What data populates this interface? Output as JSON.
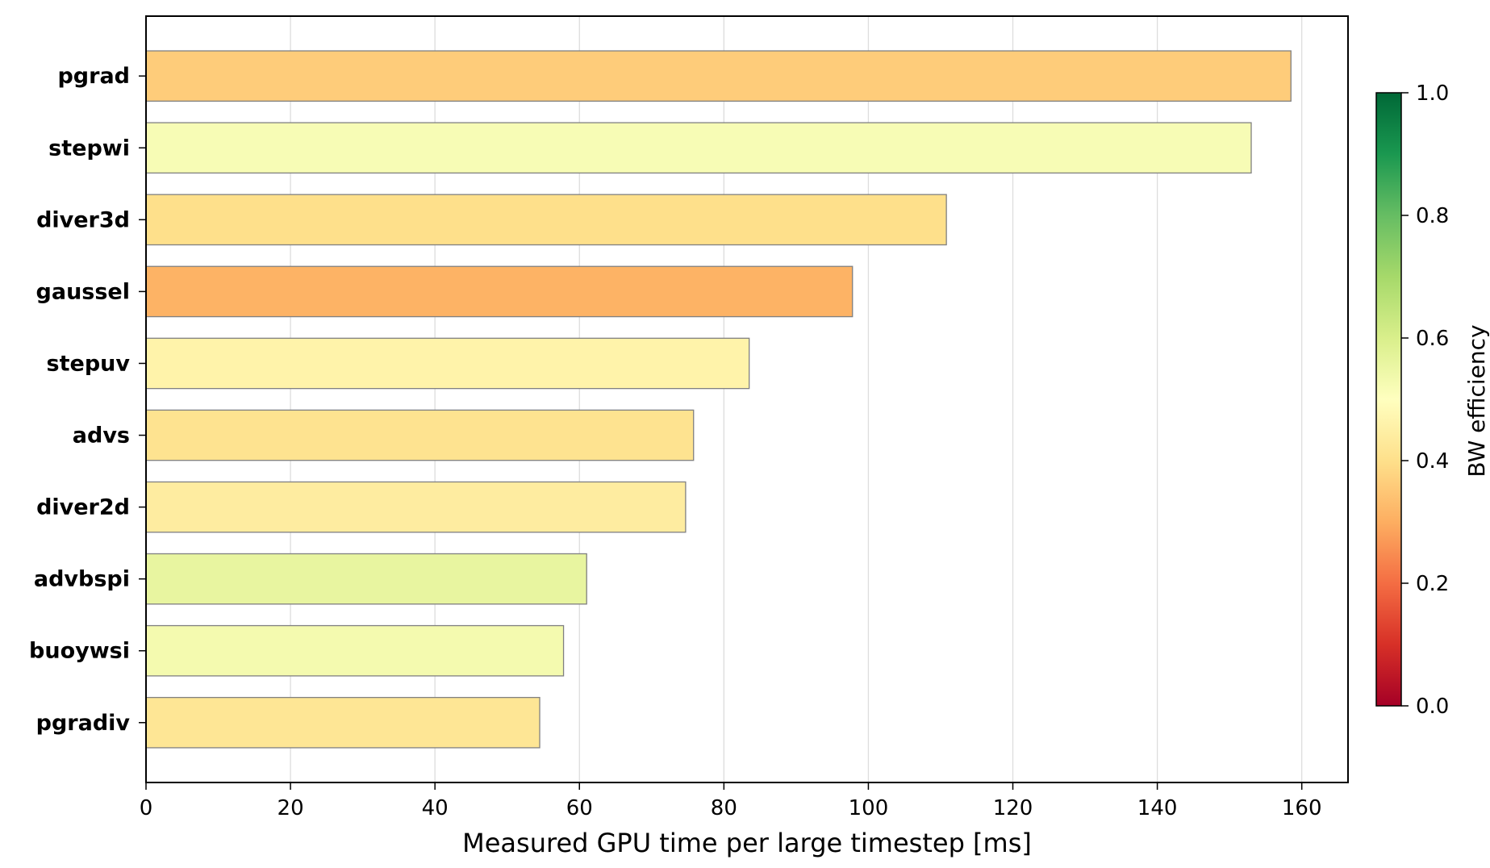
{
  "chart_data": {
    "type": "bar",
    "orientation": "horizontal",
    "categories": [
      "pgrad",
      "stepwi",
      "diver3d",
      "gaussel",
      "stepuv",
      "advs",
      "diver2d",
      "advbspi",
      "buoywsi",
      "pgradiv"
    ],
    "values": [
      158.5,
      153.0,
      110.8,
      97.8,
      83.5,
      75.8,
      74.7,
      61.0,
      57.8,
      54.5
    ],
    "bw_efficiency": [
      0.36,
      0.52,
      0.4,
      0.31,
      0.46,
      0.41,
      0.44,
      0.56,
      0.53,
      0.42
    ],
    "xlabel": "Measured GPU time per large timestep [ms]",
    "ylabel": "",
    "xlim": [
      0,
      166.4
    ],
    "xticks": [
      0,
      20,
      40,
      60,
      80,
      100,
      120,
      140,
      160
    ],
    "grid": "x",
    "colorbar": {
      "label": "BW efficiency",
      "range": [
        0.0,
        1.0
      ],
      "ticks": [
        "0.0",
        "0.2",
        "0.4",
        "0.6",
        "0.8",
        "1.0"
      ],
      "colormap": "RdYlGn",
      "stops": [
        "#a50026",
        "#d73027",
        "#f46d43",
        "#fdae61",
        "#fee08b",
        "#ffffbf",
        "#d9ef8b",
        "#a6d96a",
        "#66bd63",
        "#1a9850",
        "#006837"
      ]
    }
  }
}
